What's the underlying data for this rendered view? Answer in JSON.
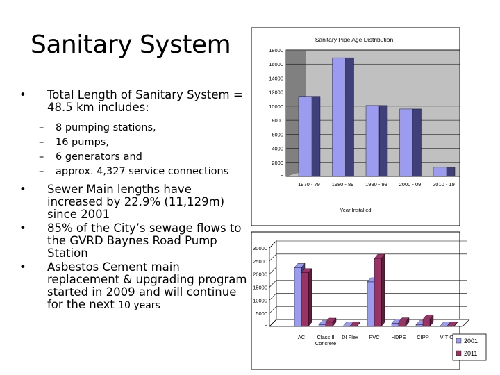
{
  "slide": {
    "title": "Sanitary System",
    "bullets": [
      {
        "text": "Total Length of Sanitary System = 48.5 km includes:",
        "subitems": [
          "8 pumping stations,",
          "16 pumps,",
          "6 generators and",
          "approx. 4,327 service connections"
        ]
      },
      {
        "text": "Sewer Main lengths have increased by 22.9% (11,129m) since 2001"
      },
      {
        "text": "85% of the City’s sewage flows to the GVRD Baynes Road Pump Station"
      },
      {
        "text_main": "Asbestos Cement main replacement & upgrading program started in 2009 and will continue for the next",
        "text_small": "10 years"
      }
    ]
  },
  "chart_data": [
    {
      "type": "bar",
      "title": "Sanitary Pipe Age Distribution",
      "xlabel": "Year Installed",
      "ylabel": "",
      "categories": [
        "1970 - 79",
        "1980 - 89",
        "1990 - 99",
        "2000 - 09",
        "2010 - 19"
      ],
      "series": [
        {
          "values": [
            11400,
            16900,
            10100,
            9600,
            1300
          ]
        }
      ],
      "yticks": [
        0,
        2000,
        4000,
        6000,
        8000,
        10000,
        12000,
        14000,
        16000,
        18000
      ],
      "ylim": [
        0,
        18000
      ],
      "grid": true,
      "colors": {
        "bar_face": "#9b9bf0",
        "bar_side": "#3f3f7a",
        "plot_bg": "#c0c0c0",
        "wall": "#808080"
      }
    },
    {
      "type": "bar",
      "categories": [
        "AC",
        "Class II Concrete",
        "DI Flex",
        "PVC",
        "HDPE",
        "CIPP",
        "VIT Cl"
      ],
      "category_lines": [
        [
          "AC"
        ],
        [
          "Class II",
          "Concrete"
        ],
        [
          "DI Flex"
        ],
        [
          "PVC"
        ],
        [
          "HDPE"
        ],
        [
          "CIPP"
        ],
        [
          "VIT Cl"
        ]
      ],
      "series": [
        {
          "name": "2001",
          "values": [
            22500,
            600,
            100,
            17000,
            1200,
            600,
            200
          ]
        },
        {
          "name": "2011",
          "values": [
            20500,
            1600,
            200,
            26000,
            1700,
            2800,
            200
          ]
        }
      ],
      "yticks": [
        0,
        5000,
        10000,
        15000,
        20000,
        25000,
        30000
      ],
      "ylim": [
        0,
        30000
      ],
      "grid": true,
      "legend": "bottom-right",
      "colors": {
        "2001_face": "#9b9bf0",
        "2001_side": "#3f3f7a",
        "2011_face": "#993366",
        "2011_side": "#5a1e3c"
      }
    }
  ]
}
